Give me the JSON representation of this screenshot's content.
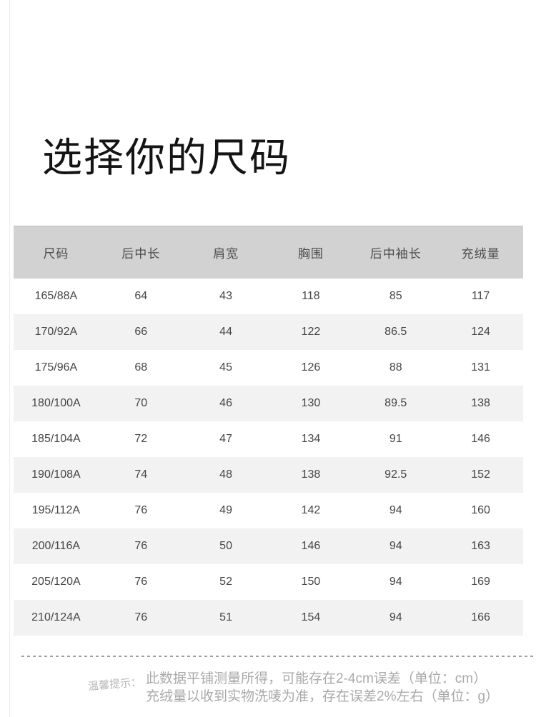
{
  "page": {
    "title": "选择你的尺码"
  },
  "table": {
    "headers": [
      "尺码",
      "后中长",
      "肩宽",
      "胸围",
      "后中袖长",
      "充绒量"
    ],
    "rows": [
      [
        "165/88A",
        "64",
        "43",
        "118",
        "85",
        "117"
      ],
      [
        "170/92A",
        "66",
        "44",
        "122",
        "86.5",
        "124"
      ],
      [
        "175/96A",
        "68",
        "45",
        "126",
        "88",
        "131"
      ],
      [
        "180/100A",
        "70",
        "46",
        "130",
        "89.5",
        "138"
      ],
      [
        "185/104A",
        "72",
        "47",
        "134",
        "91",
        "146"
      ],
      [
        "190/108A",
        "74",
        "48",
        "138",
        "92.5",
        "152"
      ],
      [
        "195/112A",
        "76",
        "49",
        "142",
        "94",
        "160"
      ],
      [
        "200/116A",
        "76",
        "50",
        "146",
        "94",
        "163"
      ],
      [
        "205/120A",
        "76",
        "52",
        "150",
        "94",
        "169"
      ],
      [
        "210/124A",
        "76",
        "51",
        "154",
        "94",
        "166"
      ]
    ]
  },
  "notice": {
    "label": "温馨提示：",
    "line1": "此数据平铺测量所得，可能存在2-4cm误差（单位：cm）",
    "line2": "充绒量以收到实物洗唛为准，存在误差2%左右（单位：g）"
  },
  "colors": {
    "header_bg": "#d2d2d2",
    "row_alt_bg": "#f2f2f2",
    "table_text": "#454545",
    "notice_text": "#a9a9a9",
    "divider": "#9e9e9e"
  }
}
